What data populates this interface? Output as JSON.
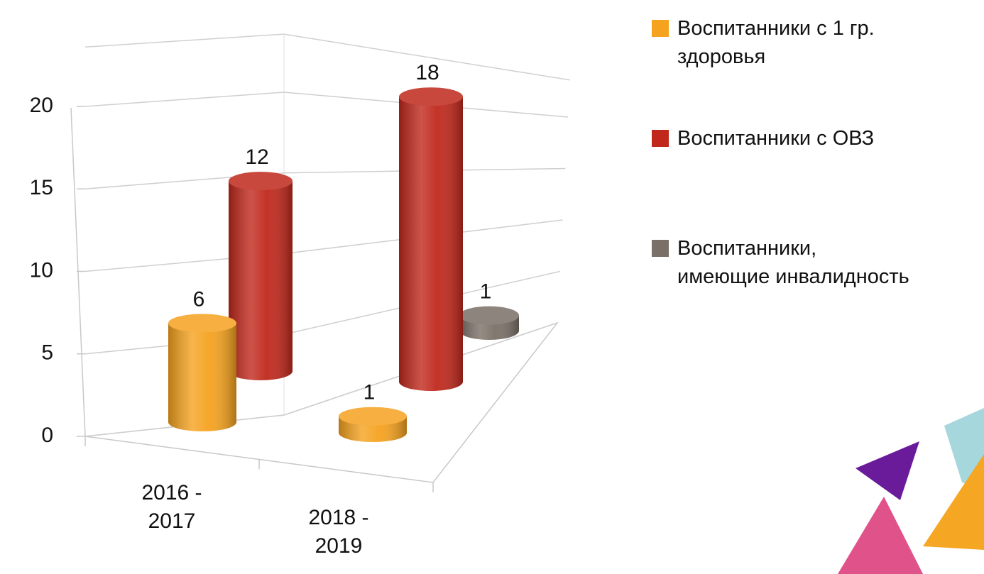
{
  "chart_data": {
    "type": "bar3d",
    "categories": [
      "2016 - 2017",
      "2018 - 2019"
    ],
    "series": [
      {
        "name": "Воспитанники с 1 гр. здоровья",
        "color": "#f5a21f",
        "values": [
          6,
          1
        ]
      },
      {
        "name": "Воспитанники с ОВЗ",
        "color": "#c0281c",
        "values": [
          12,
          18
        ]
      },
      {
        "name": "Воспитанники, имеющие инвалидность",
        "color": "#7a7067",
        "values": [
          null,
          1
        ]
      }
    ],
    "ylim": [
      0,
      20
    ],
    "yticks": [
      0,
      5,
      10,
      15,
      20
    ],
    "grid": true
  }
}
